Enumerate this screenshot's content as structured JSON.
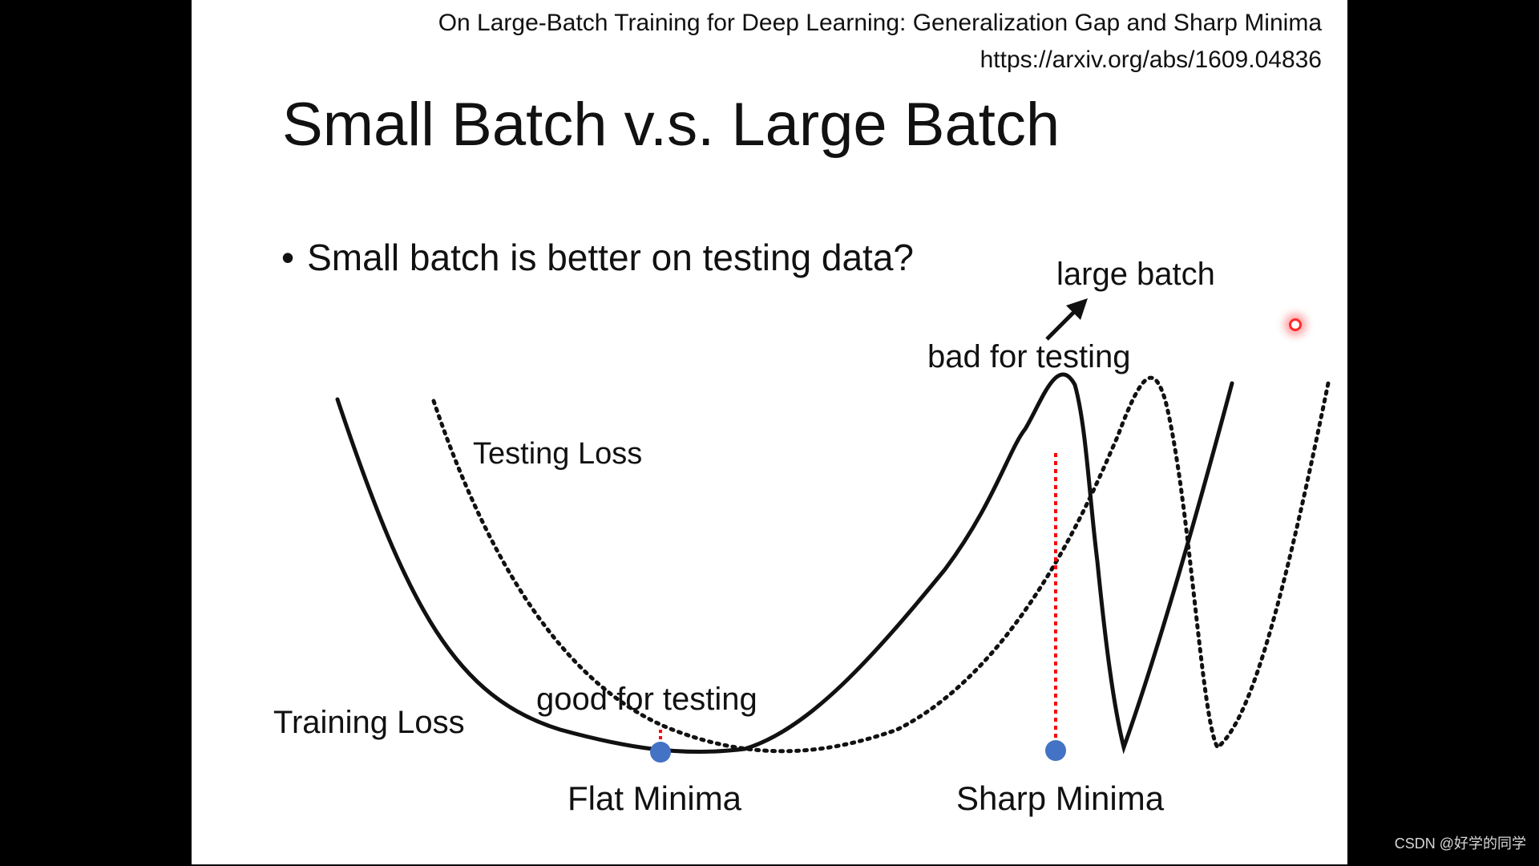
{
  "reference": {
    "title": "On Large-Batch Training for Deep Learning: Generalization Gap and Sharp Minima",
    "url": "https://arxiv.org/abs/1609.04836"
  },
  "slide": {
    "title": "Small Batch v.s. Large Batch",
    "bullet": "Small batch is better on testing data?"
  },
  "diagram": {
    "testing_loss_label": "Testing Loss",
    "training_loss_label": "Training Loss",
    "flat_minima_label": "Flat Minima",
    "sharp_minima_label": "Sharp Minima",
    "good_label": "good for testing",
    "bad_label": "bad for testing",
    "large_batch_label": "large batch",
    "colors": {
      "curve": "#111111",
      "minima_dot": "#4472c4",
      "gap_line": "#ff0000",
      "pointer": "#ff2a2a"
    }
  },
  "watermark": "CSDN @好学的同学",
  "icons": {
    "bullet": "•",
    "arrow": "arrow-up-right-icon",
    "pointer": "laser-pointer-icon"
  }
}
